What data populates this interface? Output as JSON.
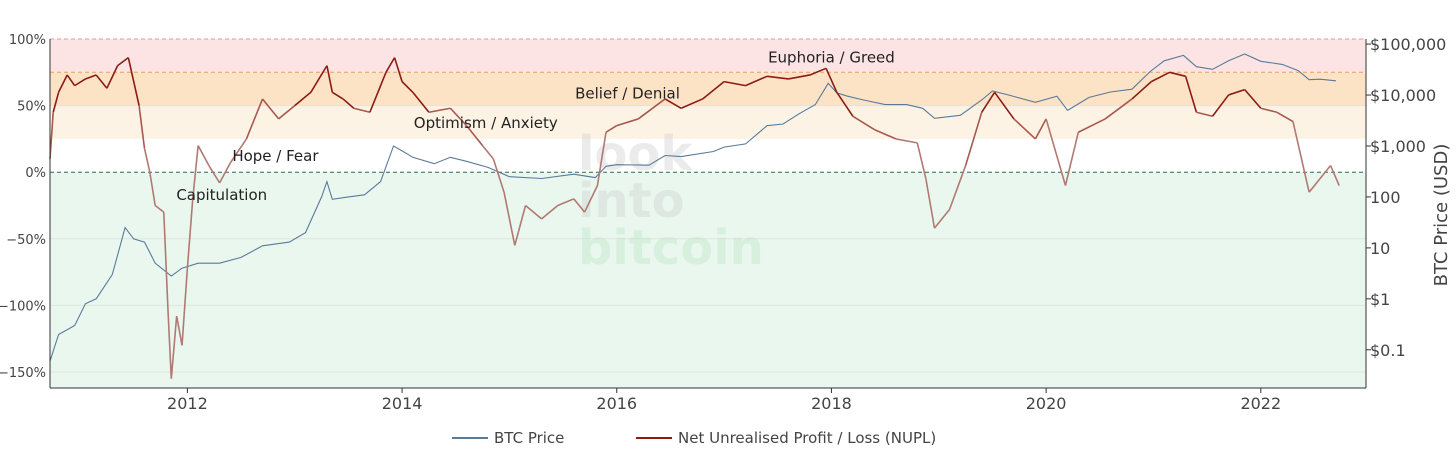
{
  "chart_data": {
    "type": "line",
    "x_range": [
      2010.72,
      2022.98
    ],
    "y_left": {
      "range": [
        -162,
        100
      ],
      "ticks": [
        {
          "v": 100,
          "label": "100%"
        },
        {
          "v": 50,
          "label": "50%"
        },
        {
          "v": 0,
          "label": "0%"
        },
        {
          "v": -50,
          "label": "−50%"
        },
        {
          "v": -100,
          "label": "−100%"
        },
        {
          "v": -150,
          "label": "−150%"
        }
      ]
    },
    "y_right": {
      "title": "BTC Price (USD)",
      "log_range": [
        -1.75,
        5.1
      ],
      "ticks": [
        {
          "v": 100000,
          "label": "$100,000"
        },
        {
          "v": 10000,
          "label": "$10,000"
        },
        {
          "v": 1000,
          "label": "$1,000"
        },
        {
          "v": 100,
          "label": "100"
        },
        {
          "v": 10,
          "label": "10"
        },
        {
          "v": 1,
          "label": "$1"
        },
        {
          "v": 0.1,
          "label": "$0.1"
        }
      ]
    },
    "x_ticks": [
      {
        "v": 2012,
        "label": "2012"
      },
      {
        "v": 2014,
        "label": "2014"
      },
      {
        "v": 2016,
        "label": "2016"
      },
      {
        "v": 2018,
        "label": "2018"
      },
      {
        "v": 2020,
        "label": "2020"
      },
      {
        "v": 2022,
        "label": "2022"
      }
    ],
    "zones": [
      {
        "name": "Euphoria / Greed",
        "from": 75,
        "to": 100,
        "color": "#fde4e4"
      },
      {
        "name": "Belief / Denial",
        "from": 50,
        "to": 75,
        "color": "#fde3c6"
      },
      {
        "name": "Optimism / Anxiety",
        "from": 25,
        "to": 50,
        "color": "#fdf3e4"
      },
      {
        "name": "Hope / Fear",
        "from": 0,
        "to": 25,
        "color": "#ffffff"
      },
      {
        "name": "Capitulation",
        "from": -162,
        "to": 0,
        "color": "#eaf7ef"
      }
    ],
    "zone_labels": [
      {
        "text": "Euphoria / Greed",
        "x": 2018.0,
        "y": 86
      },
      {
        "text": "Belief / Denial",
        "x": 2016.1,
        "y": 59
      },
      {
        "text": "Optimism / Anxiety",
        "x": 2014.78,
        "y": 37
      },
      {
        "text": "Hope / Fear",
        "x": 2012.82,
        "y": 12
      },
      {
        "text": "Capitulation",
        "x": 2012.32,
        "y": -17
      }
    ],
    "watermark": [
      "look",
      "into",
      "bitcoin"
    ],
    "series": [
      {
        "name": "BTC Price",
        "color": "#5a7a9a",
        "axis": "right",
        "points": [
          [
            2010.72,
            0.06
          ],
          [
            2010.8,
            0.2
          ],
          [
            2010.95,
            0.3
          ],
          [
            2011.05,
            0.8
          ],
          [
            2011.15,
            1.0
          ],
          [
            2011.3,
            3
          ],
          [
            2011.42,
            25
          ],
          [
            2011.5,
            15
          ],
          [
            2011.6,
            13
          ],
          [
            2011.7,
            5
          ],
          [
            2011.85,
            2.8
          ],
          [
            2011.95,
            4
          ],
          [
            2012.1,
            5
          ],
          [
            2012.3,
            5
          ],
          [
            2012.5,
            6.5
          ],
          [
            2012.7,
            11
          ],
          [
            2012.95,
            13
          ],
          [
            2013.1,
            20
          ],
          [
            2013.25,
            100
          ],
          [
            2013.3,
            200
          ],
          [
            2013.35,
            90
          ],
          [
            2013.5,
            100
          ],
          [
            2013.65,
            110
          ],
          [
            2013.8,
            200
          ],
          [
            2013.92,
            1000
          ],
          [
            2014.0,
            800
          ],
          [
            2014.1,
            600
          ],
          [
            2014.3,
            450
          ],
          [
            2014.45,
            600
          ],
          [
            2014.6,
            500
          ],
          [
            2014.8,
            380
          ],
          [
            2015.0,
            250
          ],
          [
            2015.3,
            230
          ],
          [
            2015.6,
            280
          ],
          [
            2015.8,
            240
          ],
          [
            2015.9,
            400
          ],
          [
            2016.0,
            430
          ],
          [
            2016.3,
            420
          ],
          [
            2016.45,
            650
          ],
          [
            2016.6,
            620
          ],
          [
            2016.9,
            780
          ],
          [
            2017.0,
            950
          ],
          [
            2017.2,
            1100
          ],
          [
            2017.4,
            2500
          ],
          [
            2017.55,
            2700
          ],
          [
            2017.7,
            4300
          ],
          [
            2017.85,
            6500
          ],
          [
            2017.97,
            17000
          ],
          [
            2018.05,
            11000
          ],
          [
            2018.15,
            9500
          ],
          [
            2018.3,
            8000
          ],
          [
            2018.5,
            6500
          ],
          [
            2018.7,
            6500
          ],
          [
            2018.85,
            5500
          ],
          [
            2018.96,
            3500
          ],
          [
            2019.2,
            4000
          ],
          [
            2019.4,
            8000
          ],
          [
            2019.5,
            12000
          ],
          [
            2019.65,
            10000
          ],
          [
            2019.9,
            7200
          ],
          [
            2020.1,
            9500
          ],
          [
            2020.2,
            5000
          ],
          [
            2020.4,
            9000
          ],
          [
            2020.6,
            11500
          ],
          [
            2020.8,
            13000
          ],
          [
            2020.97,
            29000
          ],
          [
            2021.1,
            47000
          ],
          [
            2021.28,
            60000
          ],
          [
            2021.4,
            36000
          ],
          [
            2021.55,
            32000
          ],
          [
            2021.7,
            47000
          ],
          [
            2021.85,
            64000
          ],
          [
            2022.0,
            46000
          ],
          [
            2022.2,
            40000
          ],
          [
            2022.35,
            30000
          ],
          [
            2022.45,
            20000
          ],
          [
            2022.55,
            20500
          ],
          [
            2022.7,
            19000
          ]
        ]
      },
      {
        "name": "Net Unrealised Profit / Loss (NUPL)",
        "color": "#8c1c13",
        "axis": "left",
        "points": [
          [
            2010.72,
            10
          ],
          [
            2010.75,
            45
          ],
          [
            2010.8,
            60
          ],
          [
            2010.88,
            73
          ],
          [
            2010.95,
            65
          ],
          [
            2011.05,
            70
          ],
          [
            2011.15,
            73
          ],
          [
            2011.25,
            63
          ],
          [
            2011.35,
            80
          ],
          [
            2011.45,
            86
          ],
          [
            2011.55,
            50
          ],
          [
            2011.6,
            18
          ],
          [
            2011.65,
            0
          ],
          [
            2011.7,
            -25
          ],
          [
            2011.78,
            -30
          ],
          [
            2011.82,
            -105
          ],
          [
            2011.85,
            -155
          ],
          [
            2011.9,
            -108
          ],
          [
            2011.95,
            -130
          ],
          [
            2012.0,
            -72
          ],
          [
            2012.05,
            -20
          ],
          [
            2012.1,
            20
          ],
          [
            2012.2,
            5
          ],
          [
            2012.3,
            -8
          ],
          [
            2012.4,
            7
          ],
          [
            2012.55,
            25
          ],
          [
            2012.7,
            55
          ],
          [
            2012.85,
            40
          ],
          [
            2013.0,
            50
          ],
          [
            2013.15,
            60
          ],
          [
            2013.3,
            80
          ],
          [
            2013.35,
            60
          ],
          [
            2013.45,
            55
          ],
          [
            2013.55,
            48
          ],
          [
            2013.7,
            45
          ],
          [
            2013.85,
            75
          ],
          [
            2013.93,
            86
          ],
          [
            2014.0,
            68
          ],
          [
            2014.1,
            60
          ],
          [
            2014.25,
            45
          ],
          [
            2014.45,
            48
          ],
          [
            2014.6,
            35
          ],
          [
            2014.75,
            20
          ],
          [
            2014.85,
            10
          ],
          [
            2014.95,
            -15
          ],
          [
            2015.05,
            -55
          ],
          [
            2015.15,
            -25
          ],
          [
            2015.3,
            -35
          ],
          [
            2015.45,
            -25
          ],
          [
            2015.6,
            -20
          ],
          [
            2015.7,
            -30
          ],
          [
            2015.82,
            -10
          ],
          [
            2015.9,
            30
          ],
          [
            2016.0,
            35
          ],
          [
            2016.2,
            40
          ],
          [
            2016.45,
            55
          ],
          [
            2016.6,
            48
          ],
          [
            2016.8,
            55
          ],
          [
            2017.0,
            68
          ],
          [
            2017.2,
            65
          ],
          [
            2017.4,
            72
          ],
          [
            2017.6,
            70
          ],
          [
            2017.8,
            73
          ],
          [
            2017.95,
            78
          ],
          [
            2018.05,
            60
          ],
          [
            2018.2,
            42
          ],
          [
            2018.4,
            32
          ],
          [
            2018.6,
            25
          ],
          [
            2018.8,
            22
          ],
          [
            2018.88,
            -5
          ],
          [
            2018.96,
            -42
          ],
          [
            2019.1,
            -28
          ],
          [
            2019.25,
            5
          ],
          [
            2019.4,
            45
          ],
          [
            2019.52,
            60
          ],
          [
            2019.7,
            40
          ],
          [
            2019.9,
            25
          ],
          [
            2020.0,
            40
          ],
          [
            2020.18,
            -10
          ],
          [
            2020.3,
            30
          ],
          [
            2020.55,
            40
          ],
          [
            2020.8,
            55
          ],
          [
            2020.98,
            68
          ],
          [
            2021.15,
            75
          ],
          [
            2021.3,
            72
          ],
          [
            2021.4,
            45
          ],
          [
            2021.55,
            42
          ],
          [
            2021.7,
            58
          ],
          [
            2021.85,
            62
          ],
          [
            2022.0,
            48
          ],
          [
            2022.15,
            45
          ],
          [
            2022.3,
            38
          ],
          [
            2022.45,
            -15
          ],
          [
            2022.55,
            -5
          ],
          [
            2022.65,
            5
          ],
          [
            2022.73,
            -10
          ]
        ]
      }
    ],
    "legend": {
      "placement": "bottom-center"
    }
  }
}
